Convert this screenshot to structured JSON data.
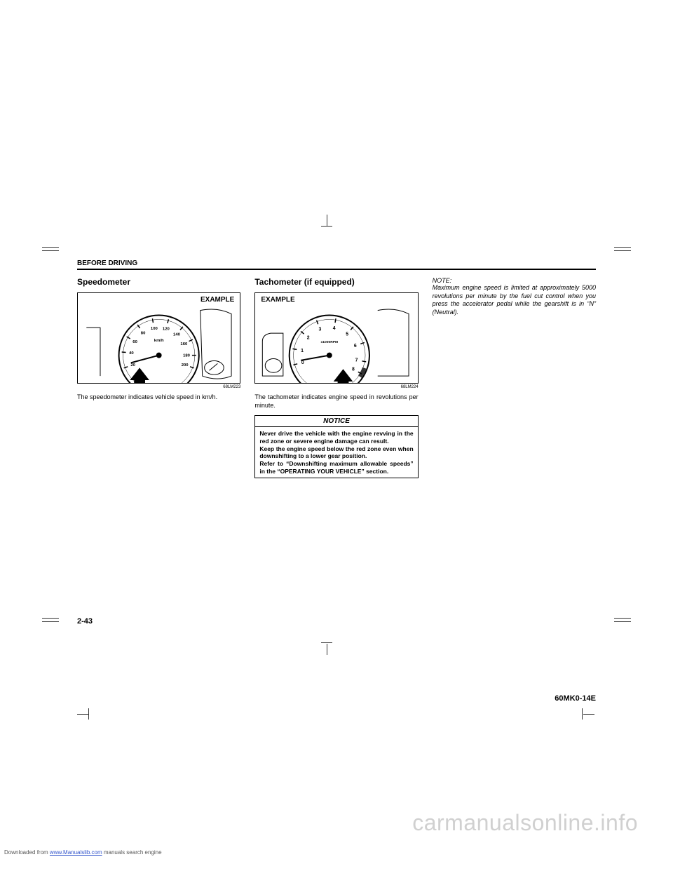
{
  "section_header": "BEFORE DRIVING",
  "page_number": "2-43",
  "doc_code": "60MK0-14E",
  "col1": {
    "title": "Speedometer",
    "example_label": "EXAMPLE",
    "fig_ref": "68LM223",
    "body": "The speedometer indicates vehicle speed in km/h.",
    "gauge": {
      "unit_label": "km/h",
      "ticks": [
        "20",
        "40",
        "60",
        "80",
        "100",
        "120",
        "140",
        "160",
        "180",
        "200"
      ],
      "tick_angles": [
        -200,
        -175,
        -150,
        -125,
        -100,
        -75,
        -50,
        -25,
        0,
        20
      ],
      "needle_angle": -195
    }
  },
  "col2": {
    "title": "Tachometer (if equipped)",
    "example_label": "EXAMPLE",
    "fig_ref": "68LM224",
    "body": "The tachometer indicates engine speed in revolutions per minute.",
    "gauge": {
      "unit_label": "x1000RPM",
      "ticks": [
        "1",
        "2",
        "3",
        "4",
        "5",
        "6",
        "7",
        "8",
        "0"
      ],
      "tick_angles": [
        -170,
        -140,
        -110,
        -80,
        -50,
        -20,
        10,
        30,
        -195
      ],
      "needle_angle": -190,
      "redzone_start": 20,
      "redzone_end": 35
    },
    "notice": {
      "title": "NOTICE",
      "body": "Never drive the vehicle with the engine revving in the red zone or severe engine damage can result.\nKeep the engine speed below the red zone even when downshifting to a lower gear position.\nRefer to “Downshifting maximum allowable speeds” in the “OPERATING YOUR VEHICLE” section."
    }
  },
  "col3": {
    "note_label": "NOTE:",
    "note_body": "Maximum engine speed is limited at approximately 5000 revolutions per minute by the fuel cut control when you press the accelerator pedal while the gearshift is in “N” (Neutral)."
  },
  "footer": {
    "prefix": "Downloaded from ",
    "link": "www.Manualslib.com",
    "suffix": " manuals search engine"
  },
  "watermark": "carmanualsonline.info",
  "colors": {
    "text": "#000000",
    "background": "#ffffff",
    "link": "#3355cc",
    "watermark": "rgba(120,120,120,0.35)",
    "redzone": "#333333"
  }
}
